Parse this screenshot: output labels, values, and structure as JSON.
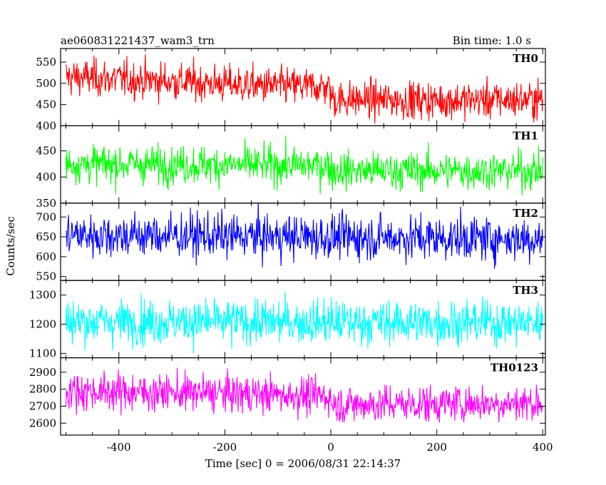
{
  "chart_data": {
    "type": "line",
    "title": "ae060831221437_wam3_trn",
    "subtitle": "Bin time: 1.0 s",
    "xlabel": "Time [sec] 0 = 2006/08/31 22:14:37",
    "ylabel": "Counts/sec",
    "xlim": [
      -510,
      405
    ],
    "x_ticks": [
      -400,
      -200,
      0,
      200,
      400
    ],
    "bin_time_s": 1.0,
    "series": [
      {
        "name": "TH0",
        "color": "#ff0000",
        "ylim": [
          400,
          582
        ],
        "y_ticks": [
          400,
          450,
          500,
          550
        ],
        "profile": [
          {
            "x": -500,
            "y": 515
          },
          {
            "x": -300,
            "y": 505
          },
          {
            "x": -150,
            "y": 495
          },
          {
            "x": -5,
            "y": 492
          },
          {
            "x": 5,
            "y": 462
          },
          {
            "x": 200,
            "y": 460
          },
          {
            "x": 400,
            "y": 462
          }
        ],
        "noise_sd": 22
      },
      {
        "name": "TH1",
        "color": "#00ff00",
        "ylim": [
          350,
          498
        ],
        "y_ticks": [
          350,
          400,
          450
        ],
        "profile": [
          {
            "x": -500,
            "y": 425
          },
          {
            "x": -5,
            "y": 422
          },
          {
            "x": 5,
            "y": 412
          },
          {
            "x": 400,
            "y": 412
          }
        ],
        "noise_sd": 18
      },
      {
        "name": "TH2",
        "color": "#0000ff",
        "ylim": [
          540,
          735
        ],
        "y_ticks": [
          550,
          600,
          650,
          700
        ],
        "profile": [
          {
            "x": -500,
            "y": 655
          },
          {
            "x": 400,
            "y": 645
          }
        ],
        "noise_sd": 28
      },
      {
        "name": "TH3",
        "color": "#00ffff",
        "ylim": [
          1085,
          1350
        ],
        "y_ticks": [
          1100,
          1200,
          1300
        ],
        "profile": [
          {
            "x": -500,
            "y": 1210
          },
          {
            "x": 400,
            "y": 1205
          }
        ],
        "noise_sd": 38
      },
      {
        "name": "TH0123",
        "color": "#ff00ff",
        "ylim": [
          2530,
          2985
        ],
        "y_ticks": [
          2600,
          2700,
          2800,
          2900
        ],
        "profile": [
          {
            "x": -500,
            "y": 2790
          },
          {
            "x": -200,
            "y": 2775
          },
          {
            "x": -5,
            "y": 2760
          },
          {
            "x": 5,
            "y": 2710
          },
          {
            "x": 400,
            "y": 2720
          }
        ],
        "noise_sd": 55
      }
    ]
  }
}
